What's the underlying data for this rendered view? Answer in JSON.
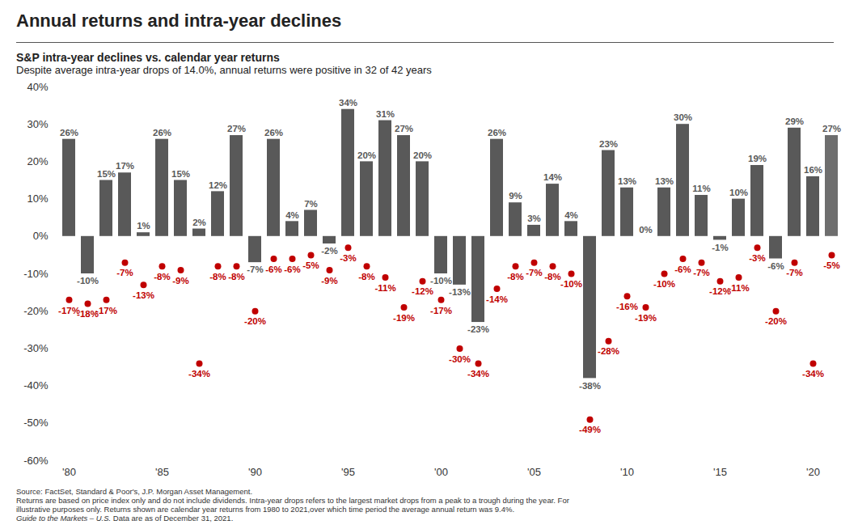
{
  "chart_data": {
    "type": "bar",
    "title": "Annual returns and intra-year declines",
    "subtitle": "S&P intra-year declines vs. calendar year returns",
    "caption": "Despite average intra-year drops of 14.0%, annual returns were positive in 32 of 42 years",
    "categories": [
      "'80",
      null,
      null,
      null,
      null,
      "'85",
      null,
      null,
      null,
      null,
      "'90",
      null,
      null,
      null,
      null,
      "'95",
      null,
      null,
      null,
      null,
      "'00",
      null,
      null,
      null,
      null,
      "'05",
      null,
      null,
      null,
      null,
      "'10",
      null,
      null,
      null,
      null,
      "'15",
      null,
      null,
      null,
      null,
      "'20",
      null
    ],
    "series": [
      {
        "type": "bar",
        "color": "#595959",
        "colors": [
          "#595959",
          "#595959",
          "#595959",
          "#595959",
          "#595959",
          "#595959",
          "#595959",
          "#595959",
          "#595959",
          "#595959",
          "#595959",
          "#595959",
          "#595959",
          "#595959",
          "#595959",
          "#595959",
          "#595959",
          "#595959",
          "#595959",
          "#595959",
          "#595959",
          "#595959",
          "#595959",
          "#595959",
          "#595959",
          "#595959",
          "#595959",
          "#595959",
          "#595959",
          "#595959",
          "#595959",
          "#595959",
          "#595959",
          "#595959",
          "#595959",
          "#595959",
          "#595959",
          "#595959",
          "#595959",
          "#595959",
          "#595959",
          "#6e6e6e"
        ],
        "values": [
          26,
          -10,
          15,
          17,
          1,
          26,
          15,
          2,
          12,
          27,
          -7,
          26,
          4,
          7,
          -2,
          34,
          20,
          31,
          27,
          20,
          -10,
          -13,
          -23,
          26,
          9,
          3,
          14,
          4,
          -38,
          23,
          13,
          0,
          13,
          30,
          11,
          -1,
          10,
          19,
          -6,
          29,
          16,
          27
        ],
        "value_labels": [
          "26%",
          "-10%",
          "15%",
          "17%",
          "1%",
          "26%",
          "15%",
          "2%",
          "12%",
          "27%",
          "-7%",
          "26%",
          "4%",
          "7%",
          "-2%",
          "34%",
          "20%",
          "31%",
          "27%",
          "20%",
          "-10%",
          "-13%",
          "-23%",
          "26%",
          "9%",
          "3%",
          "14%",
          "4%",
          "-38%",
          "23%",
          "13%",
          "0%",
          "13%",
          "30%",
          "11%",
          "-1%",
          "10%",
          "19%",
          "-6%",
          "29%",
          "16%",
          "27%"
        ]
      },
      {
        "type": "scatter",
        "color": "#c00000",
        "marker": "circle",
        "values": [
          -17,
          -18,
          -17,
          -7,
          -13,
          -8,
          -9,
          -34,
          -8,
          -8,
          -20,
          -6,
          -6,
          -5,
          -9,
          -3,
          -8,
          -11,
          -19,
          -12,
          -17,
          -30,
          -34,
          -14,
          -8,
          -7,
          -8,
          -10,
          -49,
          -28,
          -16,
          -19,
          -10,
          -6,
          -7,
          -12,
          -11,
          -3,
          -20,
          -7,
          -34,
          -5
        ],
        "value_labels": [
          "-17%",
          "-18%",
          "-17%",
          "-7%",
          "-13%",
          "-8%",
          "-9%",
          "-34%",
          "-8%",
          "-8%",
          "-20%",
          "-6%",
          "-6%",
          "-5%",
          "-9%",
          "-3%",
          "-8%",
          "-11%",
          "-19%",
          "-12%",
          "-17%",
          "-30%",
          "-34%",
          "-14%",
          "-8%",
          "-7%",
          "-8%",
          "-10%",
          "-49%",
          "-28%",
          "-16%",
          "-19%",
          "-10%",
          "-6%",
          "-7%",
          "-12%",
          "-11%",
          "-3%",
          "-20%",
          "-7%",
          "-34%",
          "-5%"
        ]
      }
    ],
    "ylim": [
      -60,
      40
    ],
    "yticks": [
      {
        "value": -60,
        "label": "-60%"
      },
      {
        "value": -50,
        "label": "-50%"
      },
      {
        "value": -40,
        "label": "-40%"
      },
      {
        "value": -30,
        "label": "-30%"
      },
      {
        "value": -20,
        "label": "-20%"
      },
      {
        "value": -10,
        "label": "-10%"
      },
      {
        "value": 0,
        "label": "0%"
      },
      {
        "value": 10,
        "label": "10%"
      },
      {
        "value": 20,
        "label": "20%"
      },
      {
        "value": 30,
        "label": "30%"
      },
      {
        "value": 40,
        "label": "40%"
      }
    ],
    "grid": false,
    "data_labels": true,
    "footnotes": [
      "Source: FactSet, Standard & Poor's, J.P. Morgan Asset Management.",
      "Returns are based on price index only and do not include dividends. Intra-year drops refers to the largest market drops from a peak to a trough during the year. For",
      "illustrative purposes only. Returns shown are calendar year returns from 1980 to 2021,over which time period the average annual return was 9.4%."
    ],
    "footer": {
      "italic": "Guide to the Markets – U.S.",
      "text": "Data are as of December 31, 2021."
    }
  }
}
